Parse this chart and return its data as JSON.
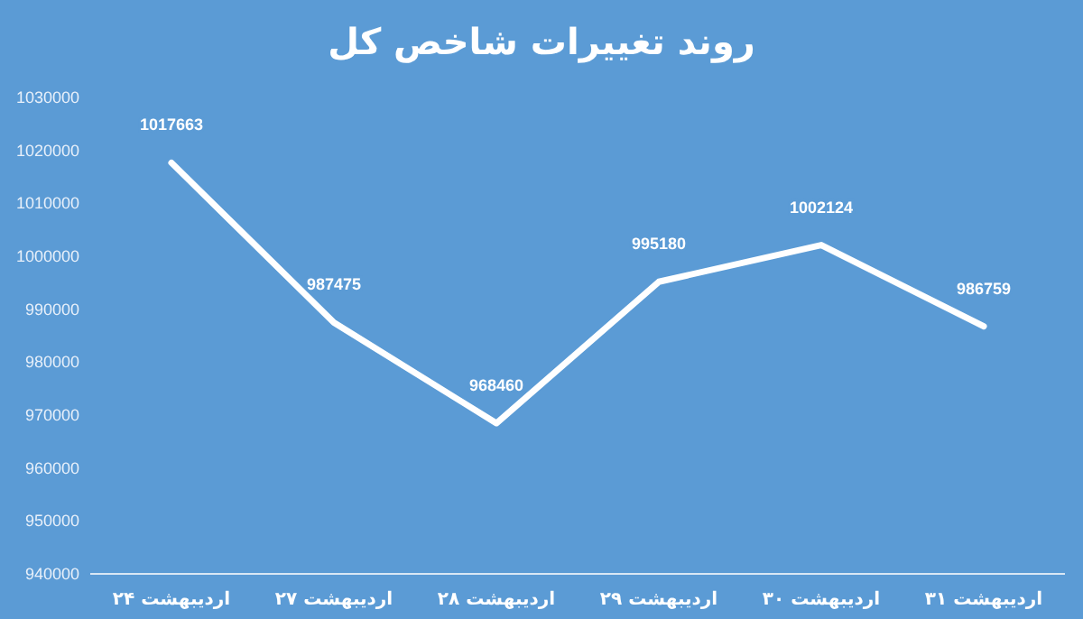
{
  "chart_data": {
    "type": "line",
    "title": "روند تغییرات شاخص کل",
    "categories": [
      "۲۴ اردیبهشت",
      "۲۷ اردیبهشت",
      "۲۸ اردیبهشت",
      "۲۹ اردیبهشت",
      "۳۰ اردیبهشت",
      "۳۱ اردیبهشت"
    ],
    "series": [
      {
        "color": "#ffffff",
        "values": [
          1017663,
          987475,
          968460,
          995180,
          1002124,
          986759
        ]
      }
    ],
    "ylim": [
      940000,
      1030000
    ],
    "yticks": [
      940000,
      950000,
      960000,
      970000,
      980000,
      990000,
      1000000,
      1010000,
      1020000,
      1030000
    ],
    "data_labels": true,
    "grid": false,
    "marker": "none",
    "line_style": "solid"
  }
}
